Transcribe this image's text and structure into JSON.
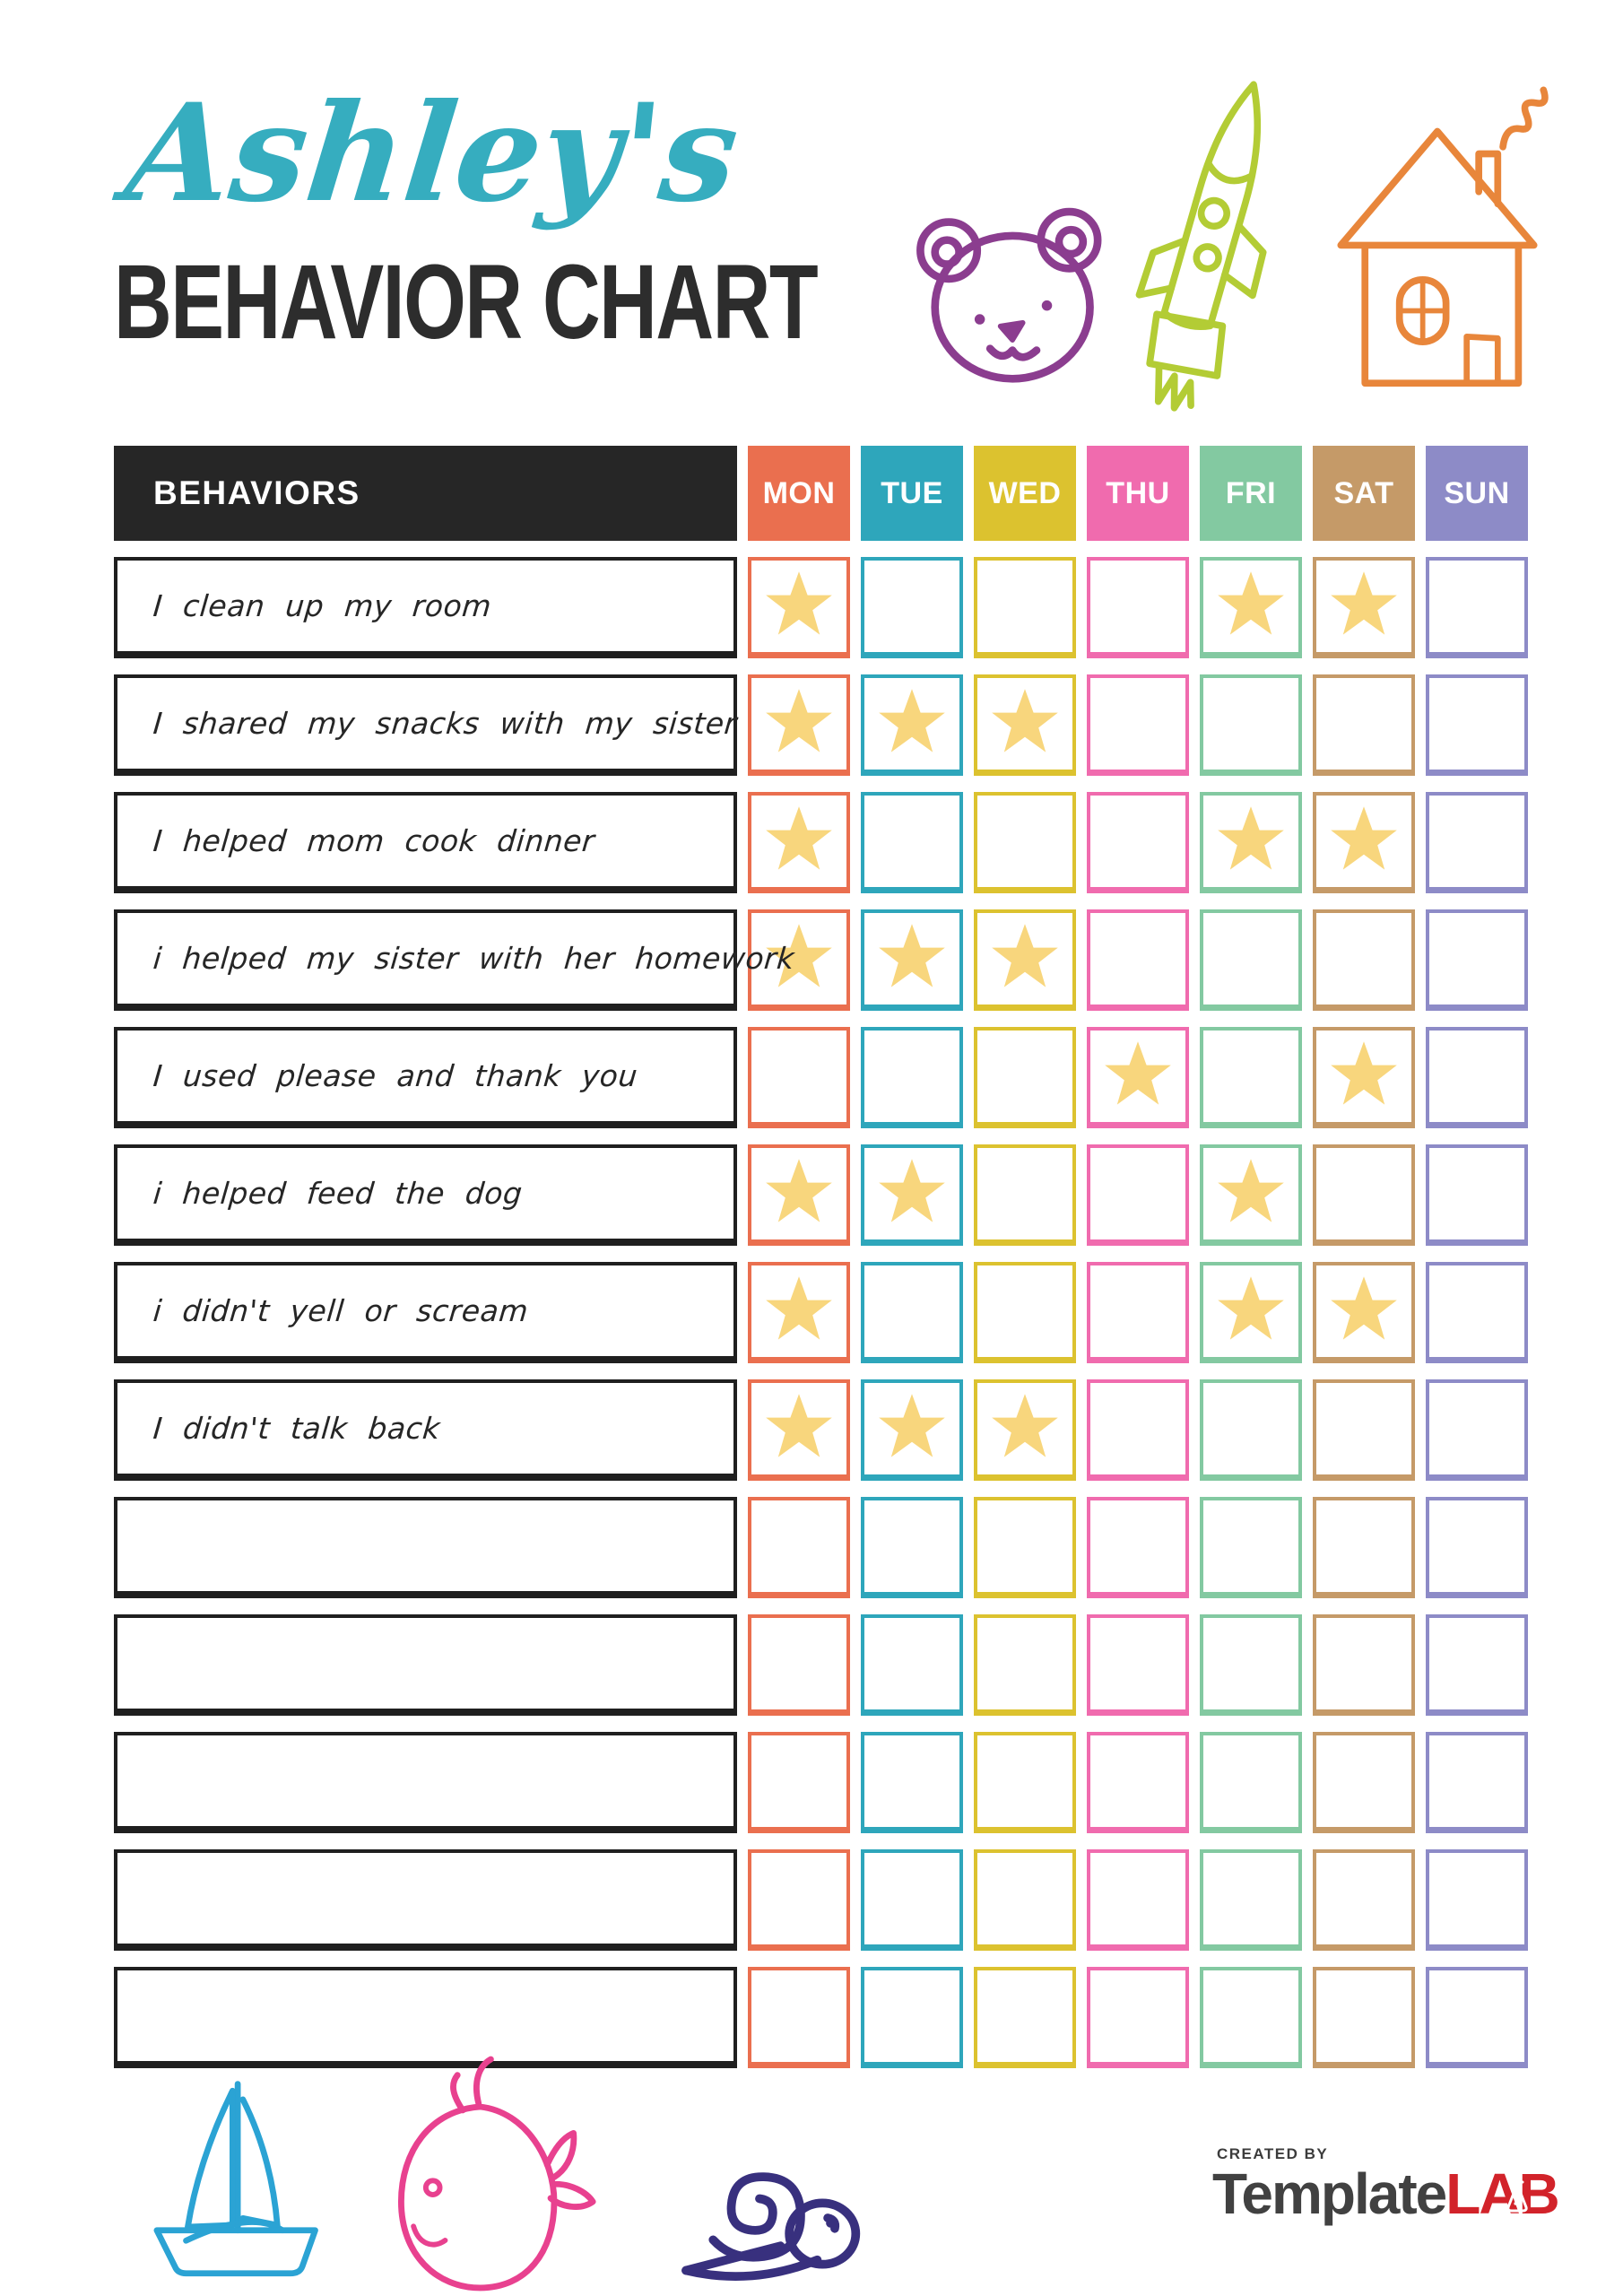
{
  "header": {
    "name_script": "Ashley's",
    "title": "BEHAVIOR CHART",
    "name_color": "#36adbf",
    "title_color": "#2d2d2d"
  },
  "doodles": {
    "top": [
      "teddy-bear",
      "rocket",
      "house"
    ],
    "bottom": [
      "sailboat",
      "whale",
      "snail"
    ],
    "colors": {
      "bear": "#8b3d8f",
      "rocket": "#b3cc35",
      "house": "#e8863b",
      "sailboat": "#2ba3d4",
      "whale": "#e8418f",
      "snail": "#38307e"
    }
  },
  "chart": {
    "behaviors_header": "BEHAVIORS",
    "header_bg": "#262626",
    "header_text_color": "#ffffff",
    "row_border_color": "#1f1f1f",
    "star_color": "#f8d67d",
    "days": [
      {
        "label": "MON",
        "color": "#ea6f4f"
      },
      {
        "label": "TUE",
        "color": "#2ea6bb"
      },
      {
        "label": "WED",
        "color": "#dcc22f"
      },
      {
        "label": "THU",
        "color": "#f06bae"
      },
      {
        "label": "FRI",
        "color": "#83c9a1"
      },
      {
        "label": "SAT",
        "color": "#c59a68"
      },
      {
        "label": "SUN",
        "color": "#8d8bc7"
      }
    ],
    "rows": [
      {
        "behavior": "I clean up my room",
        "stars": [
          "MON",
          "FRI",
          "SAT"
        ]
      },
      {
        "behavior": "I shared my snacks with my sister",
        "stars": [
          "MON",
          "TUE",
          "WED"
        ]
      },
      {
        "behavior": "I helped mom cook dinner",
        "stars": [
          "MON",
          "FRI",
          "SAT"
        ]
      },
      {
        "behavior": "i helped my sister with her homework",
        "stars": [
          "MON",
          "TUE",
          "WED"
        ]
      },
      {
        "behavior": "I used please and thank you",
        "stars": [
          "THU",
          "SAT"
        ]
      },
      {
        "behavior": "i helped feed the dog",
        "stars": [
          "MON",
          "TUE",
          "FRI"
        ]
      },
      {
        "behavior": "i didn't yell or scream",
        "stars": [
          "MON",
          "FRI",
          "SAT"
        ]
      },
      {
        "behavior": "I didn't talk back",
        "stars": [
          "MON",
          "TUE",
          "WED"
        ]
      },
      {
        "behavior": "",
        "stars": []
      },
      {
        "behavior": "",
        "stars": []
      },
      {
        "behavior": "",
        "stars": []
      },
      {
        "behavior": "",
        "stars": []
      },
      {
        "behavior": "",
        "stars": []
      }
    ]
  },
  "footer": {
    "credit": "CREATED BY",
    "brand_left": "Template",
    "brand_right": "LAB",
    "brand_left_color": "#414141",
    "brand_right_color": "#d2232a"
  }
}
